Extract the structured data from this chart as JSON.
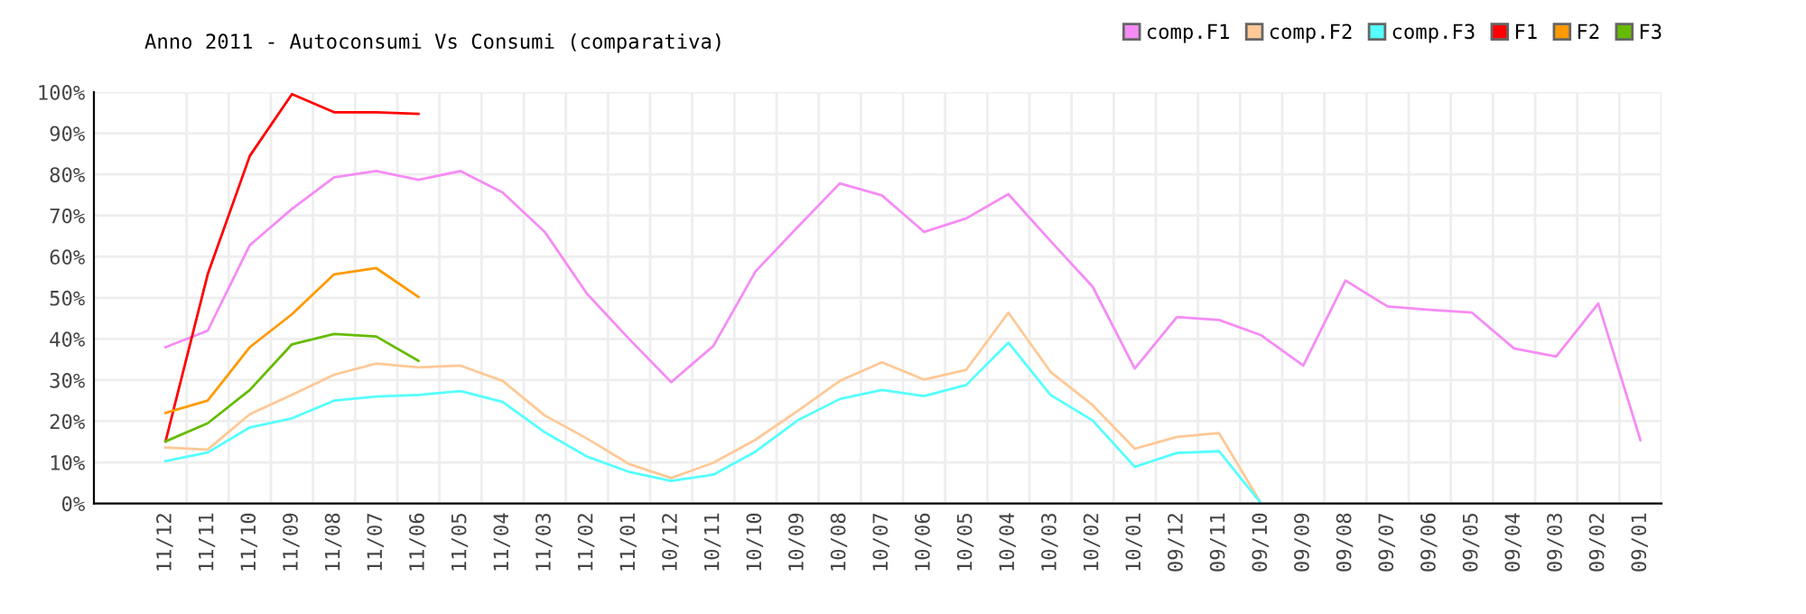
{
  "chart_data": {
    "type": "line",
    "title": "Anno 2011 - Autoconsumi Vs Consumi (comparativa)",
    "categories": [
      "11/12",
      "11/11",
      "11/10",
      "11/09",
      "11/08",
      "11/07",
      "11/06",
      "11/05",
      "11/04",
      "11/03",
      "11/02",
      "11/01",
      "10/12",
      "10/11",
      "10/10",
      "10/09",
      "10/08",
      "10/07",
      "10/06",
      "10/05",
      "10/04",
      "10/03",
      "10/02",
      "10/01",
      "09/12",
      "09/11",
      "09/10",
      "09/09",
      "09/08",
      "09/07",
      "09/06",
      "09/05",
      "09/04",
      "09/03",
      "09/02",
      "09/01"
    ],
    "series": [
      {
        "name": "comp.F1",
        "color": "#f58cf5",
        "values": [
          38,
          42,
          62.8,
          71.6,
          79.3,
          80.8,
          78.7,
          80.8,
          75.6,
          66,
          51,
          40,
          29.5,
          38.3,
          56.4,
          67.2,
          77.8,
          74.9,
          66,
          69.3,
          75.2,
          63.8,
          52.7,
          32.8,
          45.3,
          44.6,
          40.9,
          33.5,
          54.2,
          47.9,
          47.1,
          46.4,
          37.7,
          35.7,
          48.6,
          15.4
        ]
      },
      {
        "name": "comp.F2",
        "color": "#ffc896",
        "values": [
          13.6,
          13.1,
          21.7,
          26.4,
          31.3,
          34,
          33.1,
          33.5,
          29.8,
          21.4,
          15.8,
          9.6,
          6.2,
          9.9,
          15.5,
          22.5,
          29.8,
          34.3,
          30.1,
          32.5,
          46.4,
          32,
          23.9,
          13.3,
          16.2,
          17.1,
          0,
          null,
          null,
          null,
          null,
          null,
          null,
          null,
          null,
          null
        ]
      },
      {
        "name": "comp.F3",
        "color": "#55ffff",
        "values": [
          10.3,
          12.4,
          18.5,
          20.7,
          25,
          26,
          26.4,
          27.3,
          24.7,
          17.3,
          11.4,
          7.7,
          5.5,
          7,
          12.6,
          20.2,
          25.4,
          27.6,
          26.1,
          28.8,
          39.1,
          26.4,
          20.2,
          8.9,
          12.3,
          12.7,
          0,
          null,
          null,
          null,
          null,
          null,
          null,
          null,
          null,
          null
        ]
      },
      {
        "name": "F1",
        "color": "#ff0000",
        "values": [
          15.1,
          55.7,
          84.5,
          99.5,
          95.1,
          95.1,
          94.7,
          null,
          null,
          null,
          null,
          null,
          null,
          null,
          null,
          null,
          null,
          null,
          null,
          null,
          null,
          null,
          null,
          null,
          null,
          null,
          null,
          null,
          null,
          null,
          null,
          null,
          null,
          null,
          null,
          null
        ]
      },
      {
        "name": "F2",
        "color": "#ff9900",
        "values": [
          22,
          25,
          38,
          46,
          55.7,
          57.2,
          50.2,
          null,
          null,
          null,
          null,
          null,
          null,
          null,
          null,
          null,
          null,
          null,
          null,
          null,
          null,
          null,
          null,
          null,
          null,
          null,
          null,
          null,
          null,
          null,
          null,
          null,
          null,
          null,
          null,
          null
        ]
      },
      {
        "name": "F3",
        "color": "#66bb00",
        "values": [
          15.1,
          19.5,
          27.6,
          38.7,
          41.2,
          40.6,
          34.7,
          null,
          null,
          null,
          null,
          null,
          null,
          null,
          null,
          null,
          null,
          null,
          null,
          null,
          null,
          null,
          null,
          null,
          null,
          null,
          null,
          null,
          null,
          null,
          null,
          null,
          null,
          null,
          null,
          null
        ]
      }
    ],
    "ylim": [
      0,
      100
    ],
    "yticks": [
      {
        "value": 0,
        "label": "0%"
      },
      {
        "value": 10,
        "label": "10%"
      },
      {
        "value": 20,
        "label": "20%"
      },
      {
        "value": 30,
        "label": "30%"
      },
      {
        "value": 40,
        "label": "40%"
      },
      {
        "value": 50,
        "label": "50%"
      },
      {
        "value": 60,
        "label": "60%"
      },
      {
        "value": 70,
        "label": "70%"
      },
      {
        "value": 80,
        "label": "80%"
      },
      {
        "value": 90,
        "label": "90%"
      },
      {
        "value": 100,
        "label": "100%"
      }
    ],
    "grid": true,
    "legend": "top right",
    "marker": "none",
    "line_style": "solid"
  }
}
